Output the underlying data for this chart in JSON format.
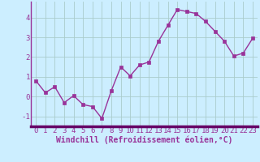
{
  "x": [
    0,
    1,
    2,
    3,
    4,
    5,
    6,
    7,
    8,
    9,
    10,
    11,
    12,
    13,
    14,
    15,
    16,
    17,
    18,
    19,
    20,
    21,
    22,
    23
  ],
  "y": [
    0.8,
    0.2,
    0.5,
    -0.3,
    0.05,
    -0.4,
    -0.5,
    -1.1,
    0.3,
    1.5,
    1.05,
    1.6,
    1.75,
    2.8,
    3.6,
    4.4,
    4.3,
    4.2,
    3.8,
    3.3,
    2.8,
    2.05,
    2.2,
    2.95
  ],
  "line_color": "#993399",
  "marker": "s",
  "markersize": 2.5,
  "linewidth": 1.0,
  "bg_color": "#cceeff",
  "plot_bg_color": "#cceeff",
  "grid_color": "#aacccc",
  "axis_bar_color": "#660066",
  "xlabel": "Windchill (Refroidissement éolien,°C)",
  "xlabel_fontsize": 7,
  "tick_fontsize": 6.5,
  "ytick_fontsize": 6.5,
  "xlim": [
    -0.5,
    23.5
  ],
  "ylim": [
    -1.5,
    4.8
  ],
  "yticks": [
    -1,
    0,
    1,
    2,
    3,
    4
  ],
  "xticks": [
    0,
    1,
    2,
    3,
    4,
    5,
    6,
    7,
    8,
    9,
    10,
    11,
    12,
    13,
    14,
    15,
    16,
    17,
    18,
    19,
    20,
    21,
    22,
    23
  ]
}
